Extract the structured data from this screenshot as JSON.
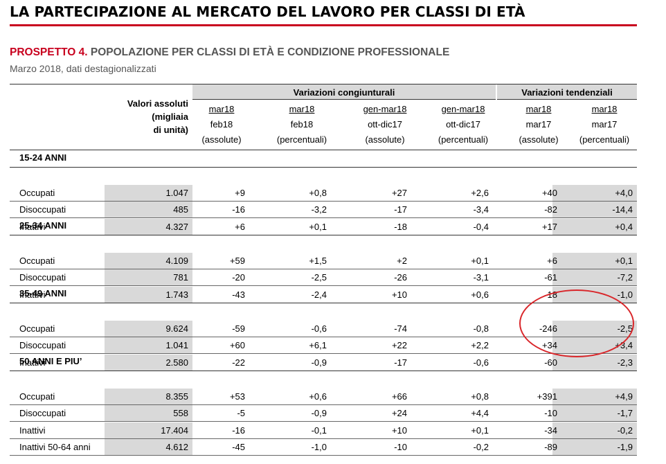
{
  "main_title": "LA PARTECIPAZIONE AL MERCATO DEL LAVORO PER CLASSI DI ETÀ",
  "table_title": {
    "prefix": "PROSPETTO 4.",
    "text": " POPOLAZIONE PER CLASSI DI ETÀ E CONDIZIONE PROFESSIONALE"
  },
  "date_line": "Marzo 2018, dati destagionalizzati",
  "header": {
    "valori_lines": [
      "Valori assoluti",
      "(migliaia",
      "di unità)"
    ],
    "group_cong": "Variazioni congiunturali",
    "group_tend": "Variazioni tendenziali",
    "columns": [
      {
        "top": "mar18",
        "mid": "feb18",
        "bot": "(assolute)"
      },
      {
        "top": "mar18",
        "mid": "feb18",
        "bot": "(percentuali)"
      },
      {
        "top": "gen-mar18",
        "mid": "ott-dic17",
        "bot": "(assolute)"
      },
      {
        "top": "gen-mar18",
        "mid": "ott-dic17",
        "bot": "(percentuali)"
      },
      {
        "top": "mar18",
        "mid": "mar17",
        "bot": "(assolute)"
      },
      {
        "top": "mar18",
        "mid": "mar17",
        "bot": "(percentuali)"
      }
    ]
  },
  "rows": [
    {
      "type": "section",
      "label": "15-24 ANNI"
    },
    {
      "type": "data",
      "label": "Occupati",
      "values": [
        "1.047",
        "+9",
        "+0,8",
        "+27",
        "+2,6",
        "+40",
        "+4,0"
      ]
    },
    {
      "type": "data",
      "label": "Disoccupati",
      "values": [
        "485",
        "-16",
        "-3,2",
        "-17",
        "-3,4",
        "-82",
        "-14,4"
      ]
    },
    {
      "type": "data",
      "label": "Inattivi",
      "values": [
        "4.327",
        "+6",
        "+0,1",
        "-18",
        "-0,4",
        "+17",
        "+0,4"
      ]
    },
    {
      "type": "section",
      "label": "25-34 ANNI"
    },
    {
      "type": "data",
      "label": "Occupati",
      "values": [
        "4.109",
        "+59",
        "+1,5",
        "+2",
        "+0,1",
        "+6",
        "+0,1"
      ]
    },
    {
      "type": "data",
      "label": "Disoccupati",
      "values": [
        "781",
        "-20",
        "-2,5",
        "-26",
        "-3,1",
        "-61",
        "-7,2"
      ]
    },
    {
      "type": "data",
      "label": "Inattivi",
      "values": [
        "1.743",
        "-43",
        "-2,4",
        "+10",
        "+0,6",
        "-18",
        "-1,0"
      ]
    },
    {
      "type": "section",
      "label": "35-49 ANNI"
    },
    {
      "type": "data",
      "label": "Occupati",
      "values": [
        "9.624",
        "-59",
        "-0,6",
        "-74",
        "-0,8",
        "-246",
        "-2,5"
      ]
    },
    {
      "type": "data",
      "label": "Disoccupati",
      "values": [
        "1.041",
        "+60",
        "+6,1",
        "+22",
        "+2,2",
        "+34",
        "+3,4"
      ]
    },
    {
      "type": "data",
      "label": "Inattivi",
      "values": [
        "2.580",
        "-22",
        "-0,9",
        "-17",
        "-0,6",
        "-60",
        "-2,3"
      ]
    },
    {
      "type": "section",
      "label": "50 ANNI E PIU’"
    },
    {
      "type": "data",
      "label": "Occupati",
      "values": [
        "8.355",
        "+53",
        "+0,6",
        "+66",
        "+0,8",
        "+391",
        "+4,9"
      ]
    },
    {
      "type": "data",
      "label": "Disoccupati",
      "values": [
        "558",
        "-5",
        "-0,9",
        "+24",
        "+4,4",
        "-10",
        "-1,7"
      ]
    },
    {
      "type": "data",
      "label": "Inattivi",
      "values": [
        "17.404",
        "-16",
        "-0,1",
        "+10",
        "+0,1",
        "-34",
        "-0,2"
      ]
    },
    {
      "type": "data",
      "label": "Inattivi 50-64 anni",
      "values": [
        "4.612",
        "-45",
        "-1,0",
        "-10",
        "-0,2",
        "-89",
        "-1,9"
      ]
    }
  ],
  "colors": {
    "accent_red": "#c8001e",
    "shade": "#d9d9d9",
    "annotation": "#d9262a"
  }
}
